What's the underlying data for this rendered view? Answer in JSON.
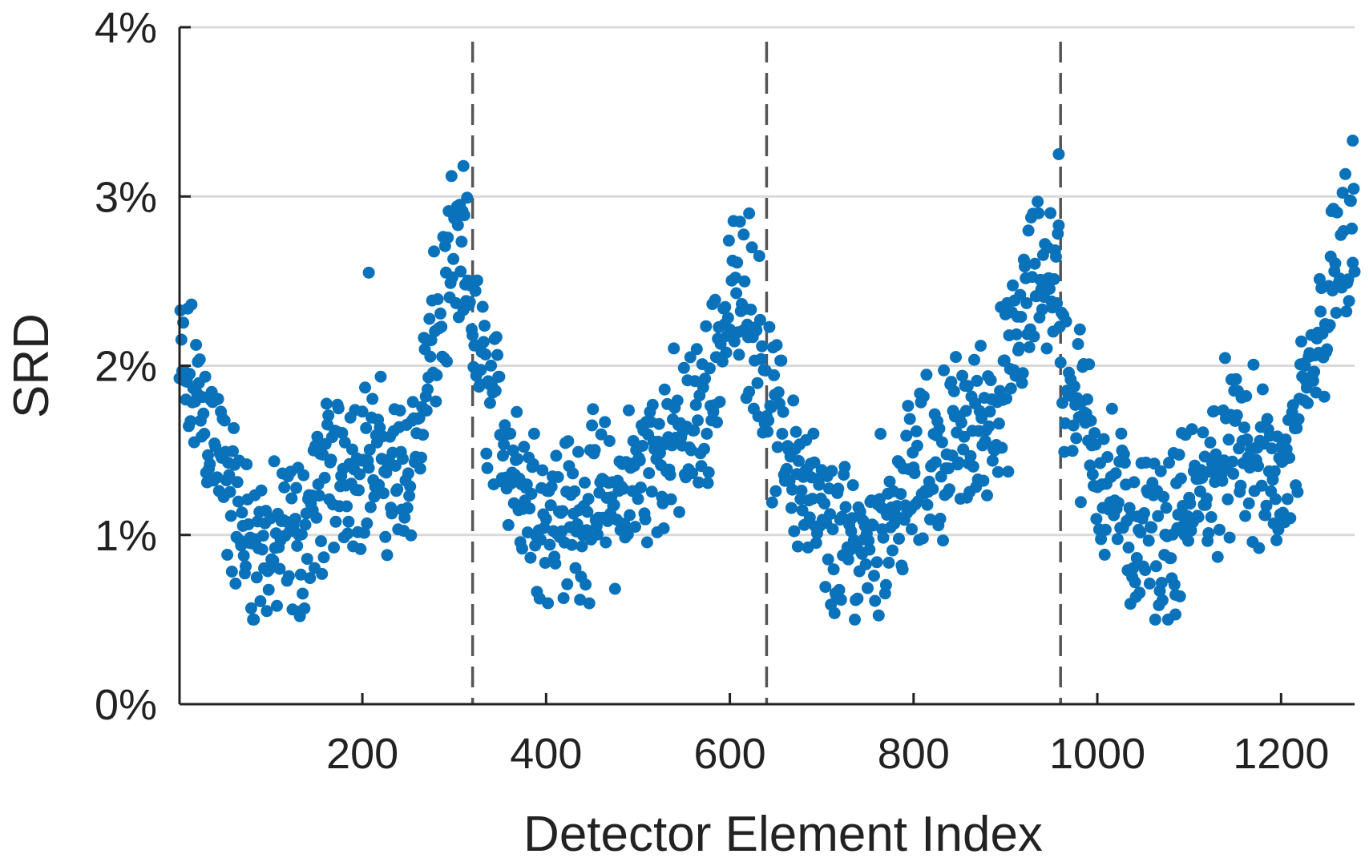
{
  "chart_data": {
    "type": "scatter",
    "title": "",
    "xlabel": "Detector Element Index",
    "ylabel": "SRD",
    "xlim": [
      1,
      1280
    ],
    "ylim": [
      0,
      4
    ],
    "x_ticks": [
      200,
      400,
      600,
      800,
      1000,
      1200
    ],
    "y_ticks": [
      0,
      1,
      2,
      3,
      4
    ],
    "y_tick_labels": [
      "0%",
      "1%",
      "2%",
      "3%",
      "4%"
    ],
    "grid": "horizontal",
    "module_boundaries": [
      320,
      640,
      960
    ],
    "marker_color": "#0a72ba",
    "profile_knots": [
      [
        1,
        1.95
      ],
      [
        20,
        1.85
      ],
      [
        40,
        1.55
      ],
      [
        60,
        1.15
      ],
      [
        80,
        0.95
      ],
      [
        100,
        0.9
      ],
      [
        120,
        0.95
      ],
      [
        140,
        1.05
      ],
      [
        160,
        1.3
      ],
      [
        180,
        1.45
      ],
      [
        200,
        1.45
      ],
      [
        220,
        1.4
      ],
      [
        240,
        1.35
      ],
      [
        260,
        1.55
      ],
      [
        280,
        2.2
      ],
      [
        300,
        2.6
      ],
      [
        319,
        2.45
      ],
      [
        321,
        2.15
      ],
      [
        340,
        1.8
      ],
      [
        360,
        1.5
      ],
      [
        380,
        1.25
      ],
      [
        400,
        1.15
      ],
      [
        420,
        1.1
      ],
      [
        440,
        1.15
      ],
      [
        460,
        1.2
      ],
      [
        480,
        1.2
      ],
      [
        500,
        1.35
      ],
      [
        520,
        1.5
      ],
      [
        540,
        1.55
      ],
      [
        560,
        1.6
      ],
      [
        580,
        1.9
      ],
      [
        600,
        2.4
      ],
      [
        620,
        2.35
      ],
      [
        639,
        2.05
      ],
      [
        641,
        1.75
      ],
      [
        660,
        1.55
      ],
      [
        680,
        1.3
      ],
      [
        700,
        1.05
      ],
      [
        720,
        0.9
      ],
      [
        740,
        0.95
      ],
      [
        760,
        1.05
      ],
      [
        780,
        1.2
      ],
      [
        800,
        1.3
      ],
      [
        820,
        1.45
      ],
      [
        840,
        1.55
      ],
      [
        860,
        1.6
      ],
      [
        880,
        1.7
      ],
      [
        900,
        1.85
      ],
      [
        920,
        2.3
      ],
      [
        940,
        2.6
      ],
      [
        959,
        2.5
      ],
      [
        961,
        2.0
      ],
      [
        980,
        1.75
      ],
      [
        1000,
        1.45
      ],
      [
        1020,
        1.2
      ],
      [
        1040,
        1.0
      ],
      [
        1060,
        0.95
      ],
      [
        1080,
        1.0
      ],
      [
        1100,
        1.15
      ],
      [
        1120,
        1.35
      ],
      [
        1140,
        1.5
      ],
      [
        1160,
        1.5
      ],
      [
        1180,
        1.35
      ],
      [
        1200,
        1.25
      ],
      [
        1220,
        1.6
      ],
      [
        1240,
        2.15
      ],
      [
        1260,
        2.55
      ],
      [
        1280,
        2.75
      ]
    ],
    "notable_points": [
      {
        "x": 310,
        "y": 3.18
      },
      {
        "x": 621,
        "y": 2.9
      },
      {
        "x": 958,
        "y": 3.25
      },
      {
        "x": 1278,
        "y": 3.33
      },
      {
        "x": 207,
        "y": 2.55
      },
      {
        "x": 132,
        "y": 0.52
      },
      {
        "x": 1085,
        "y": 0.53
      }
    ],
    "noise_amplitude": 0.38,
    "point_count": 1280
  }
}
